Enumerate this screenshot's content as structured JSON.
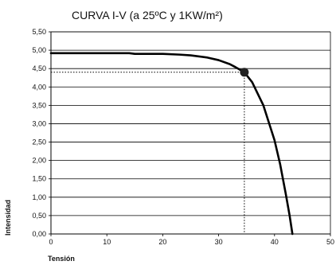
{
  "chart_data": {
    "type": "line",
    "title": "CURVA I-V (a 25ºC y 1KW/m²)",
    "xlabel": "Tensión",
    "ylabel": "Intensidad",
    "xlim": [
      0,
      50
    ],
    "ylim": [
      0,
      5.5
    ],
    "x_ticks": [
      0,
      10,
      20,
      30,
      40,
      50
    ],
    "x_tick_labels": [
      "0",
      "10",
      "20",
      "30",
      "40",
      "50"
    ],
    "y_ticks": [
      0,
      0.5,
      1,
      1.5,
      2,
      2.5,
      3,
      3.5,
      4,
      4.5,
      5,
      5.5
    ],
    "y_tick_labels": [
      "0,00",
      "0,50",
      "1,00",
      "1,50",
      "2,00",
      "2,50",
      "3,00",
      "3,50",
      "4,00",
      "4,50",
      "5,00",
      "5,50"
    ],
    "grid": "horizontal",
    "legend": "none",
    "series": [
      {
        "color": "#000000",
        "x": [
          0,
          5,
          10,
          14,
          15,
          20,
          23,
          25,
          28,
          30,
          32,
          33,
          34.6,
          36,
          38,
          40,
          41,
          42,
          42.7,
          43.2
        ],
        "y": [
          4.92,
          4.92,
          4.92,
          4.92,
          4.9,
          4.9,
          4.88,
          4.86,
          4.8,
          4.73,
          4.62,
          4.54,
          4.4,
          4.13,
          3.5,
          2.55,
          1.9,
          1.1,
          0.5,
          0.0
        ]
      }
    ],
    "marker": {
      "x": 34.6,
      "y": 4.4,
      "color": "#222222"
    },
    "reference_lines": {
      "style": "dotted",
      "x": 34.6,
      "y": 4.4
    }
  }
}
